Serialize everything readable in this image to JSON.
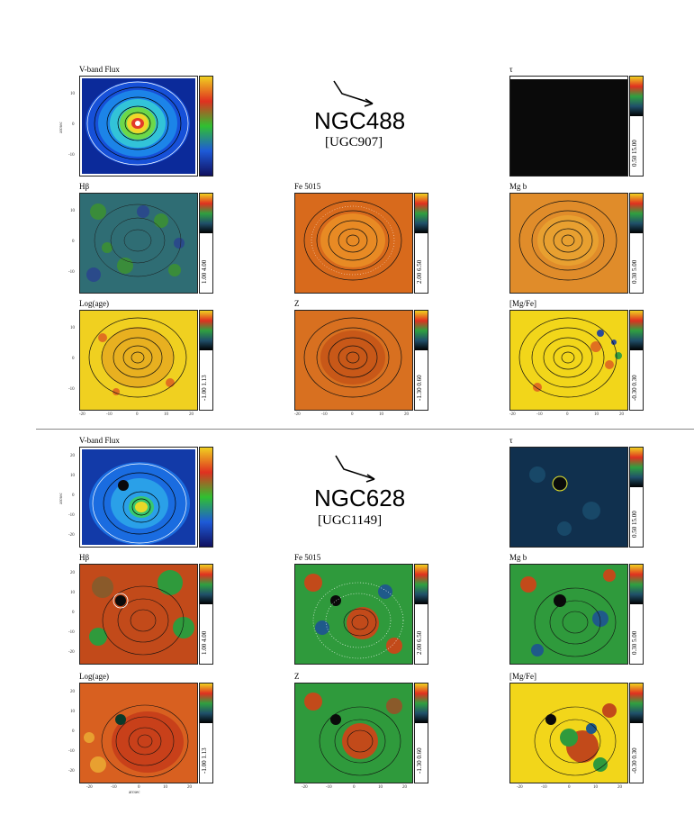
{
  "galaxies": [
    {
      "name": "NGC488",
      "alt": "[UGC907]",
      "panels": [
        {
          "title": "V-band Flux",
          "range": ""
        },
        {
          "title": "τ",
          "range": "0.50 15.00"
        },
        {
          "title": "Hβ",
          "range": "1.00 4.00"
        },
        {
          "title": "Fe 5015",
          "range": "2.00 6.50"
        },
        {
          "title": "Mg b",
          "range": "0.30 5.00"
        },
        {
          "title": "Log(age)",
          "range": "-1.00 1.13"
        },
        {
          "title": "Z",
          "range": "-1.30 0.60"
        },
        {
          "title": "[Mg/Fe]",
          "range": "-0.30 0.30"
        }
      ]
    },
    {
      "name": "NGC628",
      "alt": "[UGC1149]",
      "panels": [
        {
          "title": "V-band Flux",
          "range": ""
        },
        {
          "title": "τ",
          "range": "0.50 15.00"
        },
        {
          "title": "Hβ",
          "range": "1.00 4.00"
        },
        {
          "title": "Fe 5015",
          "range": "2.00 6.50"
        },
        {
          "title": "Mg b",
          "range": "0.30 5.00"
        },
        {
          "title": "Log(age)",
          "range": "-1.00 1.13"
        },
        {
          "title": "Z",
          "range": "-1.30 0.60"
        },
        {
          "title": "[Mg/Fe]",
          "range": "-0.30 0.30"
        }
      ]
    }
  ],
  "axes": {
    "yticks_top": [
      "10",
      "0",
      "-10"
    ],
    "yticks_bottom": [
      "20",
      "10",
      "0",
      "-10",
      "-20"
    ],
    "xticks_top": [
      "-20",
      "-10",
      "0",
      "10",
      "20"
    ],
    "xticks_bottom": [
      "-20",
      "-10",
      "0",
      "10",
      "20"
    ],
    "ylabel": "arcsec",
    "xlabel": "arcsec"
  },
  "colors": {
    "flux_bg": "#1a5fd0",
    "tau_bg": "#0a0a0a",
    "hbeta_bg": "#2f6d74",
    "fe_bg": "#d86a1c",
    "mgb_bg": "#e08c2a",
    "age_bg": "#f0d020",
    "z_bg": "#d87020",
    "mgfe_bg": "#f2d61a",
    "n628_tau": "#10304e",
    "n628_green": "#2f9a3c",
    "n628_red": "#c24a1a"
  }
}
